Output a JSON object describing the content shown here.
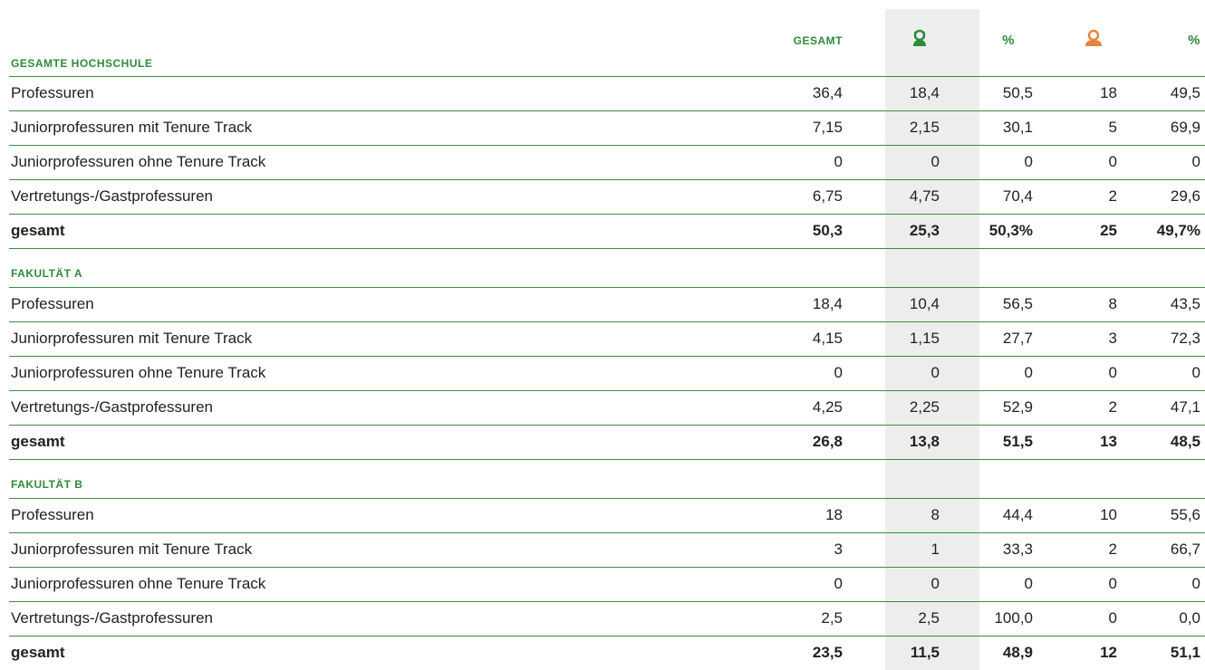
{
  "header": {
    "gesamt": "GESAMT",
    "pct_female": "%",
    "pct_male": "%"
  },
  "sections": [
    {
      "title": "GESAMTE HOCHSCHULE",
      "rows": [
        [
          "Professuren",
          "36,4",
          "18,4",
          "50,5",
          "18",
          "49,5"
        ],
        [
          "Juniorprofessuren mit Tenure Track",
          "7,15",
          "2,15",
          "30,1",
          "5",
          "69,9"
        ],
        [
          "Juniorprofessuren ohne Tenure Track",
          "0",
          "0",
          "0",
          "0",
          "0"
        ],
        [
          "Vertretungs-/Gastprofessuren",
          "6,75",
          "4,75",
          "70,4",
          "2",
          "29,6"
        ]
      ],
      "total": [
        "gesamt",
        "50,3",
        "25,3",
        "50,3%",
        "25",
        "49,7%"
      ]
    },
    {
      "title": "FAKULTÄT A",
      "rows": [
        [
          "Professuren",
          "18,4",
          "10,4",
          "56,5",
          "8",
          "43,5"
        ],
        [
          "Juniorprofessuren mit Tenure Track",
          "4,15",
          "1,15",
          "27,7",
          "3",
          "72,3"
        ],
        [
          "Juniorprofessuren ohne Tenure Track",
          "0",
          "0",
          "0",
          "0",
          "0"
        ],
        [
          "Vertretungs-/Gastprofessuren",
          "4,25",
          "2,25",
          "52,9",
          "2",
          "47,1"
        ]
      ],
      "total": [
        "gesamt",
        "26,8",
        "13,8",
        "51,5",
        "13",
        "48,5"
      ]
    },
    {
      "title": "FAKULTÄT B",
      "rows": [
        [
          "Professuren",
          "18",
          "8",
          "44,4",
          "10",
          "55,6"
        ],
        [
          "Juniorprofessuren mit Tenure Track",
          "3",
          "1",
          "33,3",
          "2",
          "66,7"
        ],
        [
          "Juniorprofessuren ohne Tenure Track",
          "0",
          "0",
          "0",
          "0",
          "0"
        ],
        [
          "Vertretungs-/Gastprofessuren",
          "2,5",
          "2,5",
          "100,0",
          "0",
          "0,0"
        ]
      ],
      "total": [
        "gesamt",
        "23,5",
        "11,5",
        "48,9",
        "12",
        "51,1"
      ]
    }
  ]
}
